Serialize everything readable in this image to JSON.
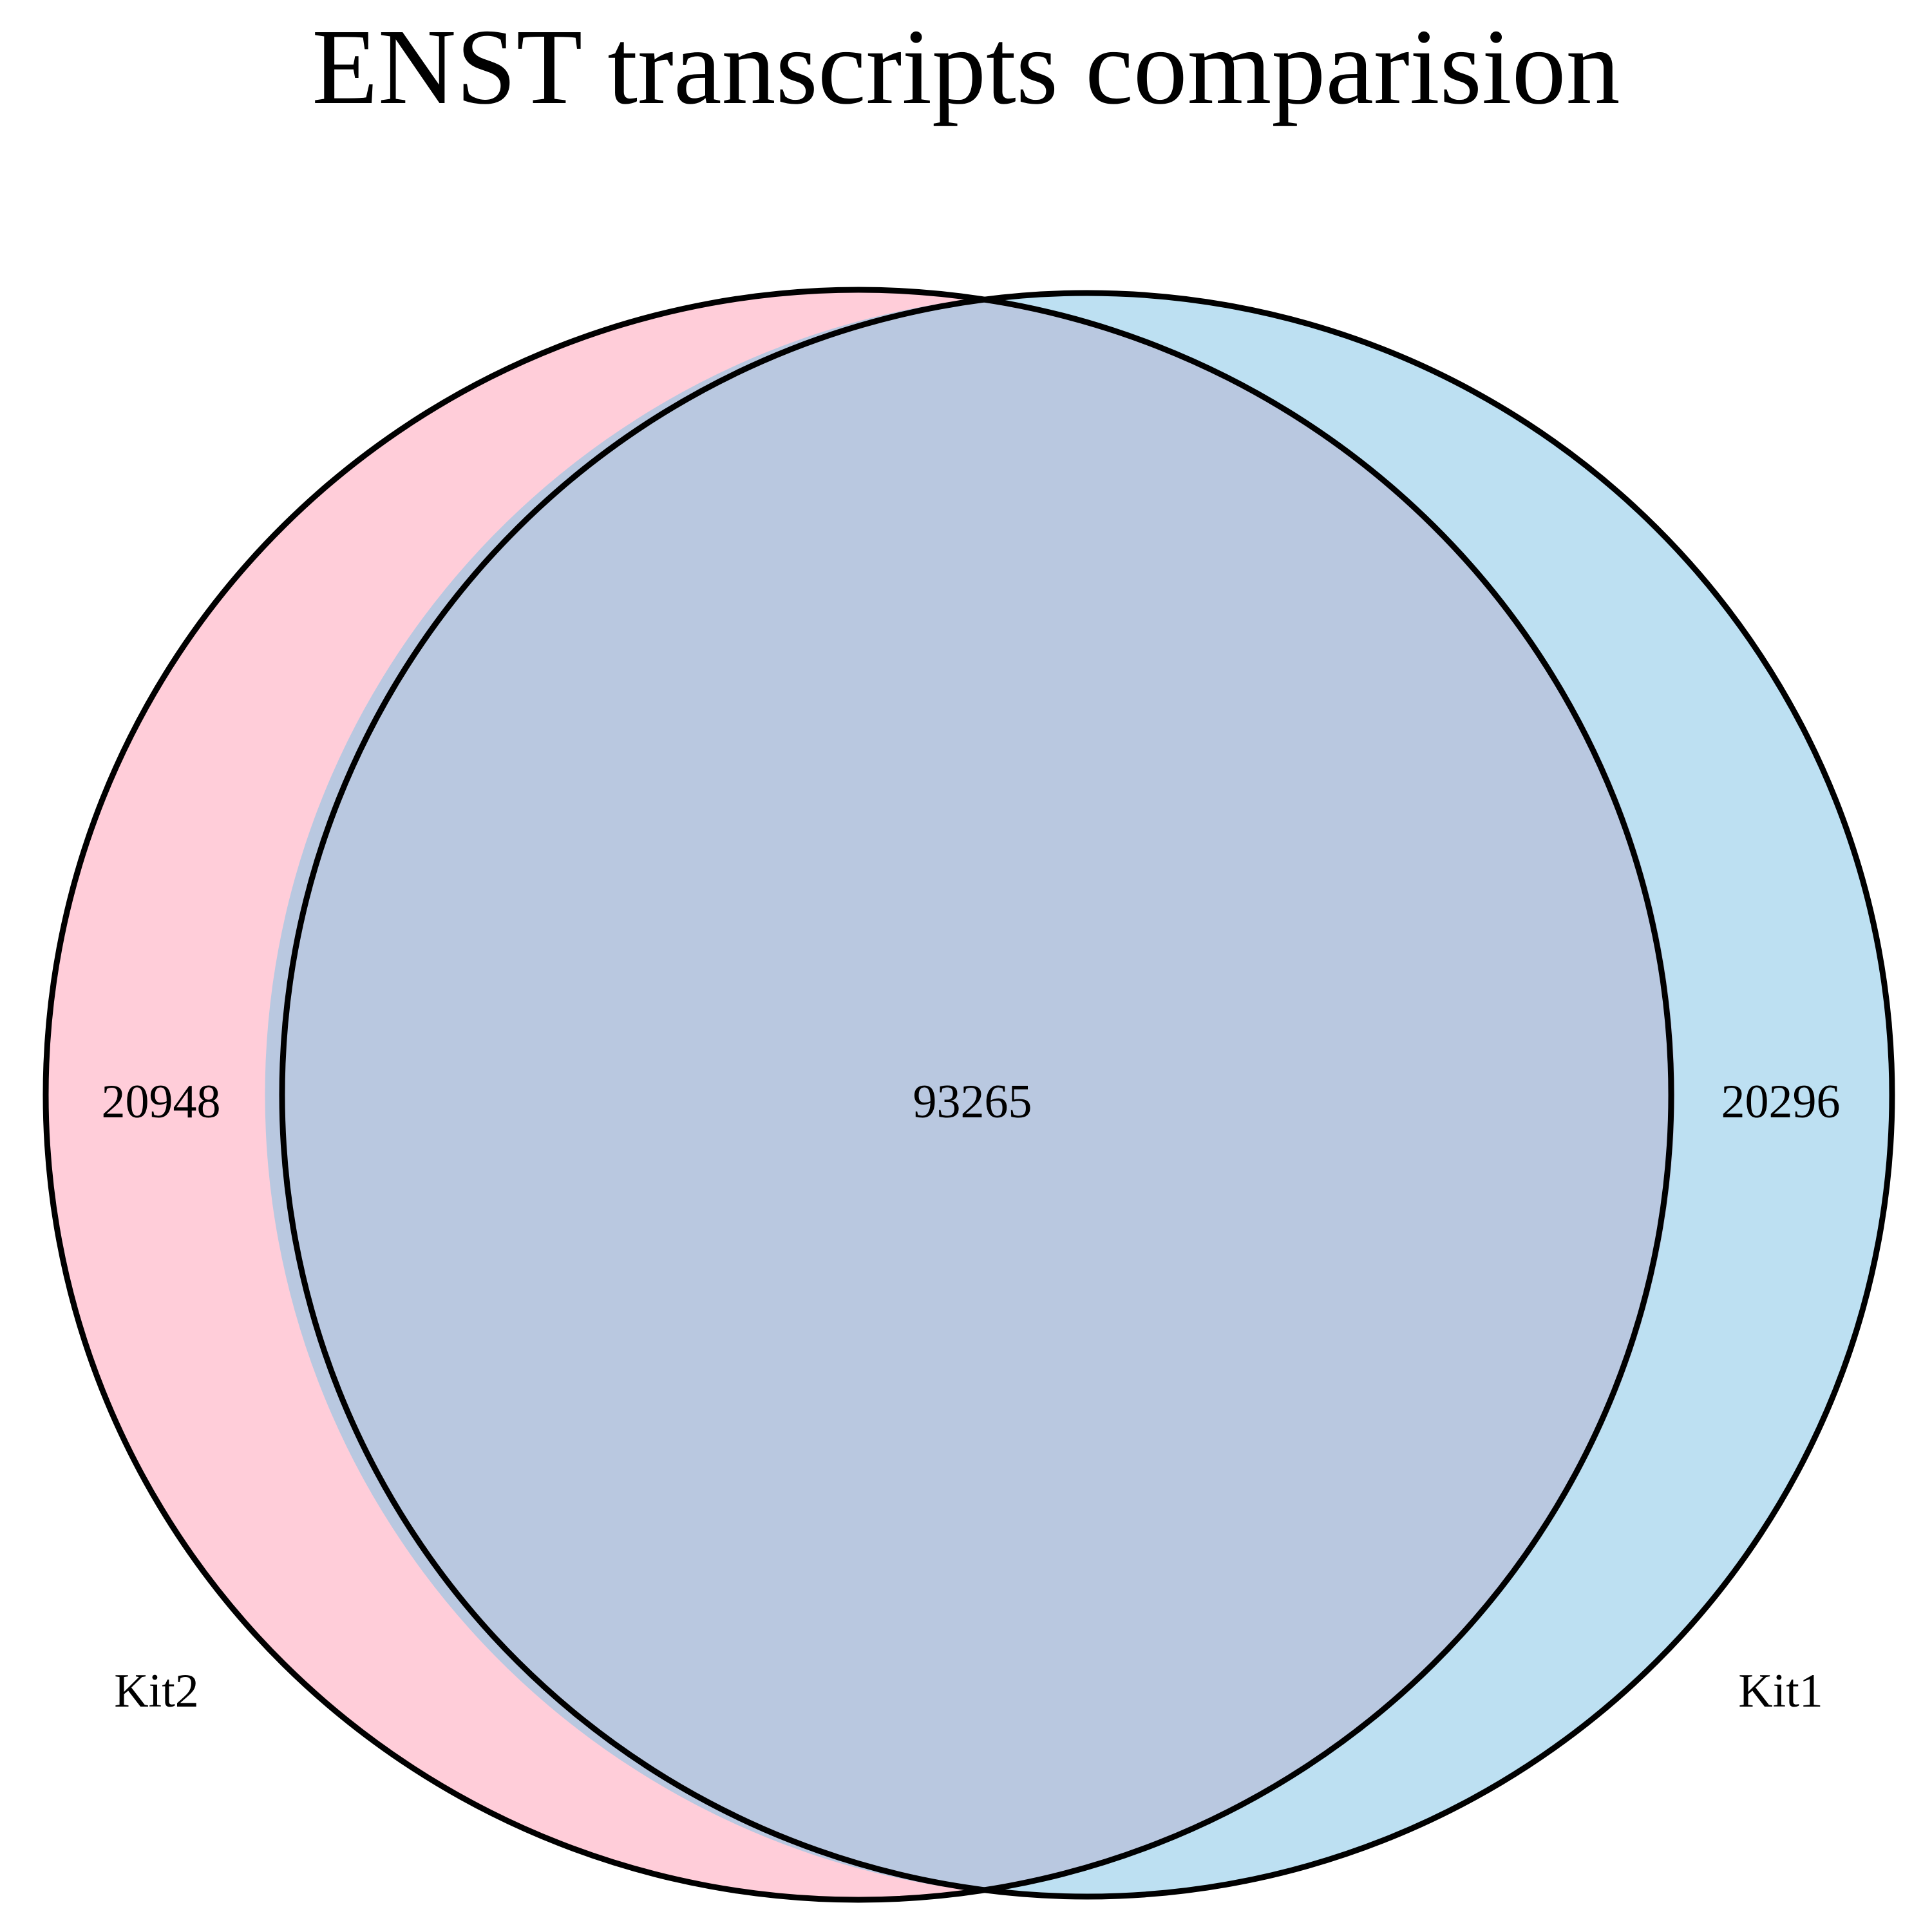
{
  "title": "ENST transcripts comparision",
  "colors": {
    "kit2_fill": "#ffcdd9",
    "kit1_fill": "#bde0f2",
    "overlap_fill": "#b9c8e0",
    "outline": "#000000",
    "background": "#ffffff"
  },
  "sets": {
    "kit2": {
      "label": "Kit2",
      "only_count": "20948"
    },
    "kit1": {
      "label": "Kit1",
      "only_count": "20296"
    }
  },
  "overlap": {
    "count": "93265"
  }
}
